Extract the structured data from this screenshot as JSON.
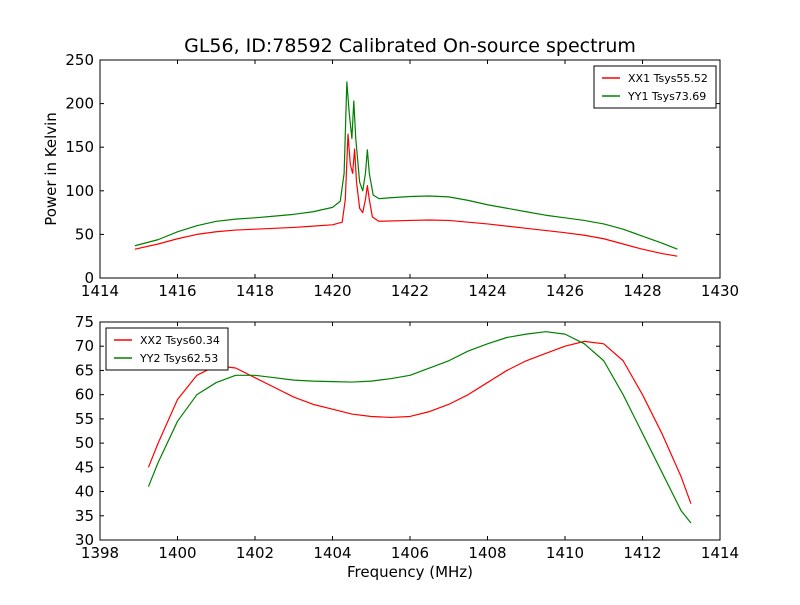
{
  "title": "GL56, ID:78592 Calibrated On-source spectrum",
  "colors": {
    "red": "#ff0000",
    "green": "#008000"
  },
  "chart_data": [
    {
      "type": "line",
      "title": "GL56, ID:78592 Calibrated On-source spectrum",
      "xlabel": "",
      "ylabel": "Power in Kelvin",
      "xlim": [
        1414,
        1430
      ],
      "ylim": [
        0,
        250
      ],
      "xticks": [
        "1414",
        "1416",
        "1418",
        "1420",
        "1422",
        "1424",
        "1426",
        "1428",
        "1430"
      ],
      "yticks": [
        "0",
        "50",
        "100",
        "150",
        "200",
        "250"
      ],
      "legend_position": "top-right",
      "grid": false,
      "series": [
        {
          "name": "XX1 Tsys55.52",
          "color": "#ff0000",
          "points": [
            [
              1414.9,
              33
            ],
            [
              1415.5,
              39
            ],
            [
              1416.0,
              45
            ],
            [
              1416.5,
              50
            ],
            [
              1417.0,
              53
            ],
            [
              1417.5,
              55
            ],
            [
              1418.0,
              56
            ],
            [
              1418.5,
              57
            ],
            [
              1419.0,
              58
            ],
            [
              1419.5,
              59.5
            ],
            [
              1420.0,
              61
            ],
            [
              1420.25,
              64
            ],
            [
              1420.33,
              90
            ],
            [
              1420.4,
              165
            ],
            [
              1420.46,
              130
            ],
            [
              1420.52,
              120
            ],
            [
              1420.57,
              148
            ],
            [
              1420.62,
              110
            ],
            [
              1420.7,
              80
            ],
            [
              1420.78,
              75
            ],
            [
              1420.85,
              90
            ],
            [
              1420.9,
              106
            ],
            [
              1420.95,
              90
            ],
            [
              1421.03,
              70
            ],
            [
              1421.2,
              65
            ],
            [
              1422.0,
              66
            ],
            [
              1422.5,
              66.5
            ],
            [
              1423.0,
              66
            ],
            [
              1424.0,
              62
            ],
            [
              1425.0,
              57
            ],
            [
              1426.0,
              52
            ],
            [
              1426.5,
              49
            ],
            [
              1427.0,
              45
            ],
            [
              1427.5,
              39
            ],
            [
              1428.0,
              33
            ],
            [
              1428.5,
              28
            ],
            [
              1428.9,
              25
            ]
          ]
        },
        {
          "name": "YY1 Tsys73.69",
          "color": "#008000",
          "points": [
            [
              1414.9,
              37
            ],
            [
              1415.5,
              44
            ],
            [
              1416.0,
              53
            ],
            [
              1416.5,
              60
            ],
            [
              1417.0,
              65
            ],
            [
              1417.5,
              67.5
            ],
            [
              1418.0,
              69
            ],
            [
              1418.5,
              71
            ],
            [
              1419.0,
              73
            ],
            [
              1419.5,
              76
            ],
            [
              1420.0,
              81
            ],
            [
              1420.2,
              88
            ],
            [
              1420.3,
              120
            ],
            [
              1420.37,
              225
            ],
            [
              1420.43,
              190
            ],
            [
              1420.5,
              160
            ],
            [
              1420.55,
              203
            ],
            [
              1420.6,
              160
            ],
            [
              1420.7,
              110
            ],
            [
              1420.78,
              100
            ],
            [
              1420.85,
              120
            ],
            [
              1420.9,
              147
            ],
            [
              1420.95,
              120
            ],
            [
              1421.05,
              95
            ],
            [
              1421.2,
              91
            ],
            [
              1421.5,
              92
            ],
            [
              1422.0,
              93.5
            ],
            [
              1422.5,
              94
            ],
            [
              1423.0,
              93
            ],
            [
              1423.5,
              89
            ],
            [
              1424.0,
              84
            ],
            [
              1424.5,
              80
            ],
            [
              1425.0,
              76
            ],
            [
              1425.5,
              72
            ],
            [
              1426.0,
              69
            ],
            [
              1426.5,
              66
            ],
            [
              1427.0,
              62
            ],
            [
              1427.5,
              56
            ],
            [
              1428.0,
              48
            ],
            [
              1428.5,
              40
            ],
            [
              1428.9,
              33
            ]
          ]
        }
      ]
    },
    {
      "type": "line",
      "title": "",
      "xlabel": "Frequency (MHz)",
      "ylabel": "",
      "xlim": [
        1398,
        1414
      ],
      "ylim": [
        30,
        75
      ],
      "xticks": [
        "1398",
        "1400",
        "1402",
        "1404",
        "1406",
        "1408",
        "1410",
        "1412",
        "1414"
      ],
      "yticks": [
        "30",
        "35",
        "40",
        "45",
        "50",
        "55",
        "60",
        "65",
        "70",
        "75"
      ],
      "legend_position": "top-left",
      "grid": false,
      "series": [
        {
          "name": "XX2 Tsys60.34",
          "color": "#ff0000",
          "points": [
            [
              1399.25,
              45
            ],
            [
              1399.5,
              50
            ],
            [
              1400.0,
              59
            ],
            [
              1400.5,
              64
            ],
            [
              1401.0,
              66
            ],
            [
              1401.5,
              65.5
            ],
            [
              1402.0,
              63.5
            ],
            [
              1402.5,
              61.5
            ],
            [
              1403.0,
              59.5
            ],
            [
              1403.5,
              58
            ],
            [
              1404.0,
              57
            ],
            [
              1404.5,
              56
            ],
            [
              1405.0,
              55.5
            ],
            [
              1405.5,
              55.3
            ],
            [
              1406.0,
              55.5
            ],
            [
              1406.5,
              56.5
            ],
            [
              1407.0,
              58
            ],
            [
              1407.5,
              60
            ],
            [
              1408.0,
              62.5
            ],
            [
              1408.5,
              65
            ],
            [
              1409.0,
              67
            ],
            [
              1409.5,
              68.5
            ],
            [
              1410.0,
              70
            ],
            [
              1410.5,
              71
            ],
            [
              1411.0,
              70.5
            ],
            [
              1411.5,
              67
            ],
            [
              1412.0,
              60
            ],
            [
              1412.5,
              52
            ],
            [
              1413.0,
              43
            ],
            [
              1413.25,
              37.5
            ]
          ]
        },
        {
          "name": "YY2 Tsys62.53",
          "color": "#008000",
          "points": [
            [
              1399.25,
              41
            ],
            [
              1399.5,
              46
            ],
            [
              1400.0,
              54.5
            ],
            [
              1400.5,
              60
            ],
            [
              1401.0,
              62.5
            ],
            [
              1401.5,
              64
            ],
            [
              1402.0,
              64
            ],
            [
              1402.5,
              63.5
            ],
            [
              1403.0,
              63
            ],
            [
              1403.5,
              62.8
            ],
            [
              1404.0,
              62.7
            ],
            [
              1404.5,
              62.6
            ],
            [
              1405.0,
              62.8
            ],
            [
              1405.5,
              63.3
            ],
            [
              1406.0,
              64
            ],
            [
              1406.5,
              65.5
            ],
            [
              1407.0,
              67
            ],
            [
              1407.5,
              69
            ],
            [
              1408.0,
              70.5
            ],
            [
              1408.5,
              71.8
            ],
            [
              1409.0,
              72.5
            ],
            [
              1409.5,
              73
            ],
            [
              1410.0,
              72.5
            ],
            [
              1410.5,
              70.5
            ],
            [
              1411.0,
              67
            ],
            [
              1411.5,
              60
            ],
            [
              1412.0,
              52
            ],
            [
              1412.5,
              44
            ],
            [
              1413.0,
              36
            ],
            [
              1413.25,
              33.5
            ]
          ]
        }
      ]
    }
  ]
}
